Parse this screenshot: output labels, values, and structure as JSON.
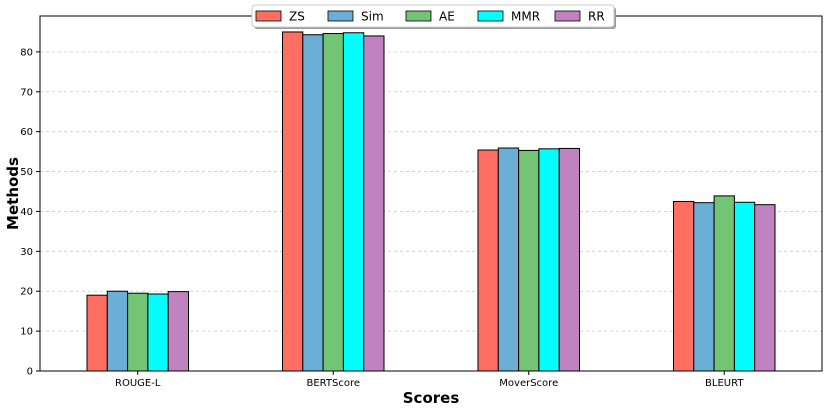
{
  "chart_data": {
    "type": "bar",
    "title": "",
    "xlabel": "Scores",
    "ylabel": "Methods",
    "categories": [
      "ROUGE-L",
      "BERTScore",
      "MoverScore",
      "BLEURT"
    ],
    "series": [
      {
        "name": "ZS",
        "color": "#ff6f61",
        "values": [
          19.0,
          85.0,
          55.4,
          42.5
        ]
      },
      {
        "name": "Sim",
        "color": "#6baed6",
        "values": [
          20.0,
          84.3,
          55.9,
          42.2
        ]
      },
      {
        "name": "AE",
        "color": "#74c476",
        "values": [
          19.5,
          84.6,
          55.3,
          43.9
        ]
      },
      {
        "name": "MMR",
        "color": "#00ffff",
        "values": [
          19.3,
          84.8,
          55.7,
          42.3
        ]
      },
      {
        "name": "RR",
        "color": "#c082c0",
        "values": [
          19.9,
          84.0,
          55.8,
          41.7
        ]
      }
    ],
    "ylim": [
      0,
      89
    ],
    "yticks": [
      0,
      10,
      20,
      30,
      40,
      50,
      60,
      70,
      80
    ],
    "grid": "y-dashed",
    "legend_position": "top-center"
  }
}
